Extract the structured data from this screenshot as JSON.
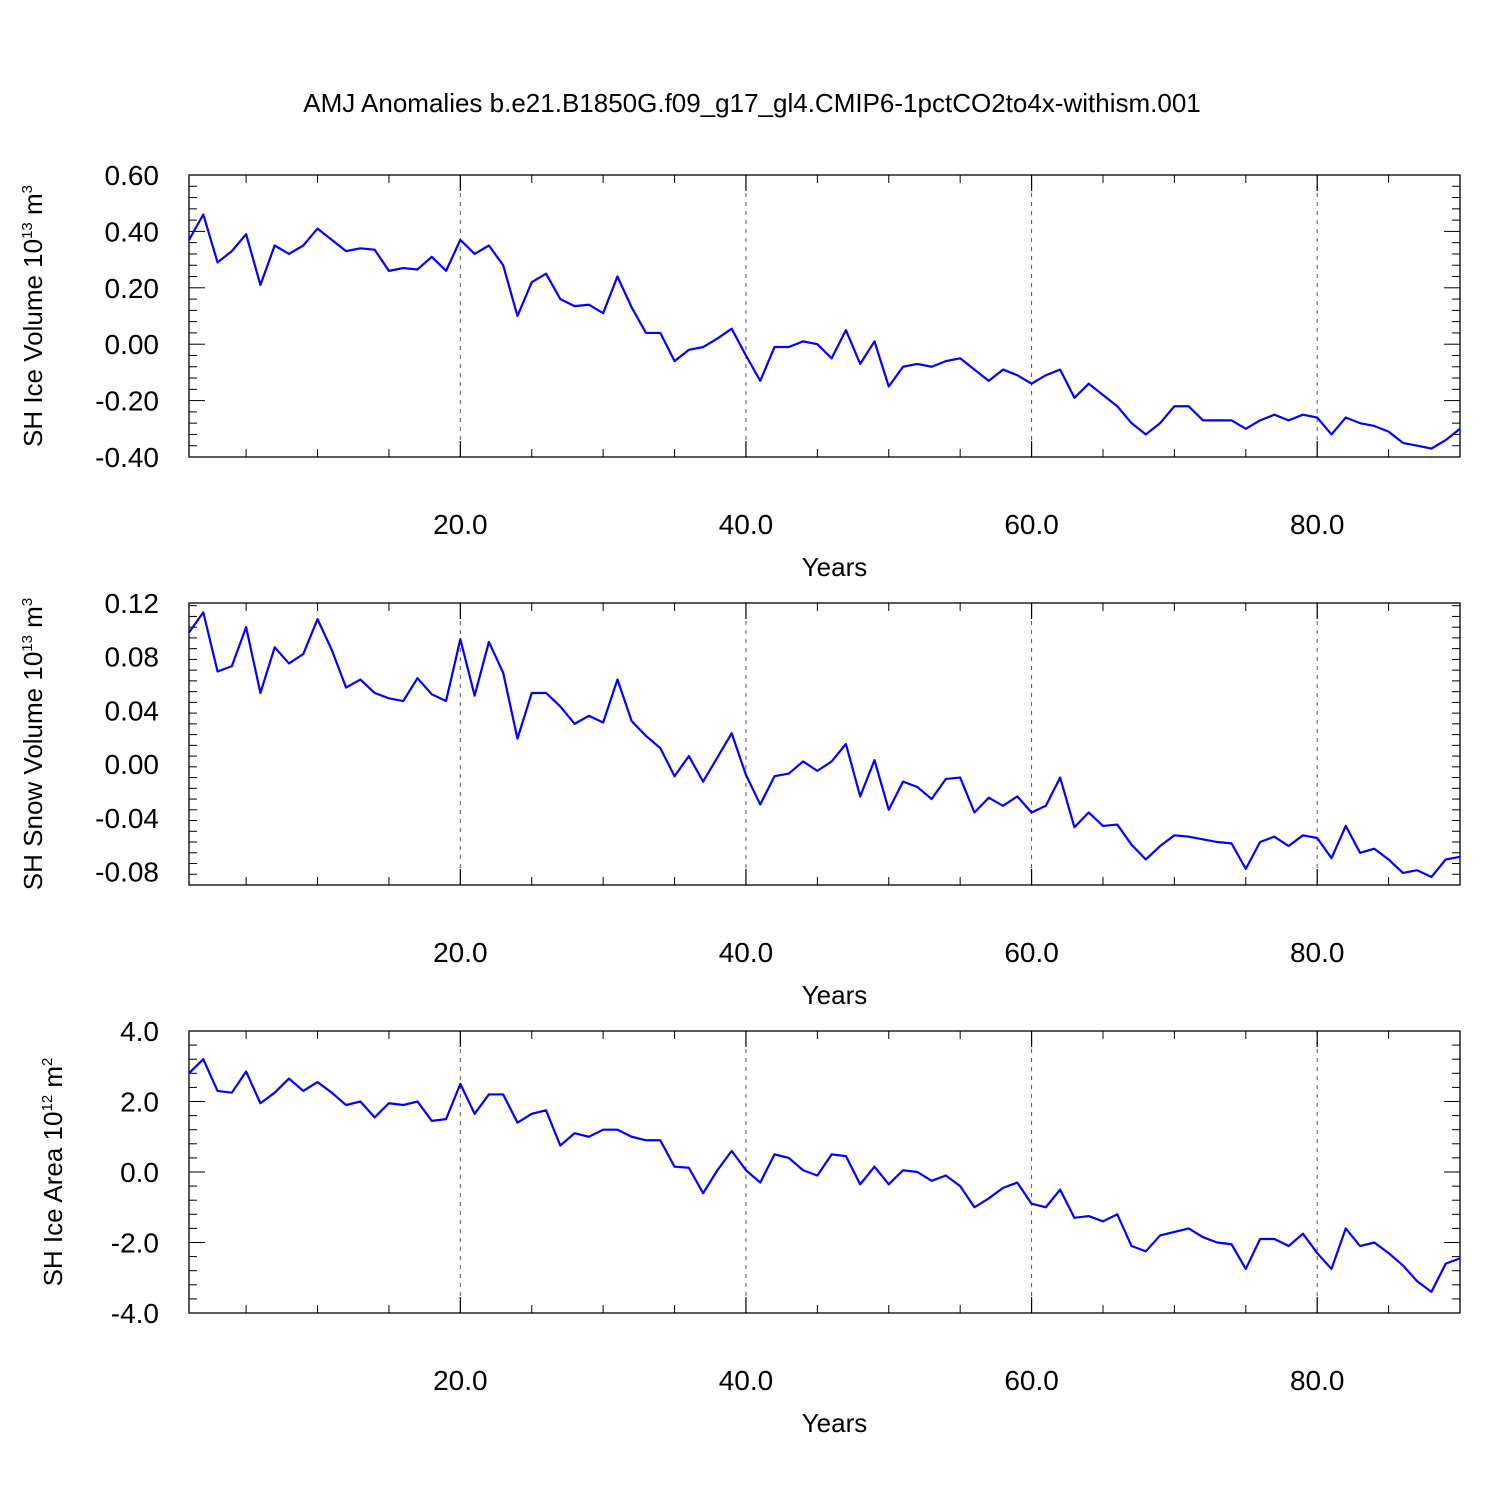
{
  "title": "AMJ Anomalies b.e21.B1850G.f09_g17_gl4.CMIP6-1pctCO2to4x-withism.001",
  "colors": {
    "line": "#0000ff",
    "axis": "#000000",
    "grid": "#555555"
  },
  "chart_data": [
    {
      "type": "line",
      "ylabel": {
        "prefix": "SH Ice Volume 10",
        "exp": "13",
        "unit": " m",
        "unit_exp": "3"
      },
      "xlabel": "Years",
      "xlim": [
        1,
        90
      ],
      "ylim": [
        -0.4,
        0.6
      ],
      "xticks": [
        20.0,
        40.0,
        60.0,
        80.0
      ],
      "xtick_labels": [
        "20.0",
        "40.0",
        "60.0",
        "80.0"
      ],
      "yticks": [
        -0.4,
        -0.2,
        0.0,
        0.2,
        0.4,
        0.6
      ],
      "ytick_labels": [
        "-0.40",
        "-0.20",
        "0.00",
        "0.20",
        "0.40",
        "0.60"
      ],
      "grid": "vertical-dashed",
      "x_start": 1,
      "values": [
        0.37,
        0.46,
        0.29,
        0.33,
        0.39,
        0.21,
        0.35,
        0.32,
        0.35,
        0.41,
        0.37,
        0.33,
        0.34,
        0.335,
        0.26,
        0.27,
        0.265,
        0.31,
        0.26,
        0.37,
        0.32,
        0.35,
        0.28,
        0.1,
        0.22,
        0.25,
        0.16,
        0.135,
        0.14,
        0.11,
        0.24,
        0.13,
        0.04,
        0.04,
        -0.06,
        -0.02,
        -0.01,
        0.02,
        0.055,
        -0.04,
        -0.13,
        -0.01,
        -0.01,
        0.01,
        0.0,
        -0.05,
        0.05,
        -0.07,
        0.01,
        -0.15,
        -0.08,
        -0.07,
        -0.08,
        -0.06,
        -0.05,
        -0.09,
        -0.13,
        -0.09,
        -0.11,
        -0.14,
        -0.11,
        -0.09,
        -0.19,
        -0.14,
        -0.18,
        -0.22,
        -0.28,
        -0.32,
        -0.28,
        -0.22,
        -0.22,
        -0.27,
        -0.27,
        -0.27,
        -0.3,
        -0.27,
        -0.25,
        -0.27,
        -0.25,
        -0.26,
        -0.32,
        -0.26,
        -0.28,
        -0.29,
        -0.31,
        -0.35,
        -0.36,
        -0.37,
        -0.34,
        -0.3
      ]
    },
    {
      "type": "line",
      "ylabel": {
        "prefix": "SH Snow Volume 10",
        "exp": "13",
        "unit": " m",
        "unit_exp": "3"
      },
      "xlabel": "Years",
      "xlim": [
        1,
        90
      ],
      "ylim": [
        -0.09,
        0.12
      ],
      "xticks": [
        20.0,
        40.0,
        60.0,
        80.0
      ],
      "xtick_labels": [
        "20.0",
        "40.0",
        "60.0",
        "80.0"
      ],
      "yticks": [
        -0.08,
        -0.04,
        0.0,
        0.04,
        0.08,
        0.12
      ],
      "ytick_labels": [
        "-0.08",
        "-0.04",
        "0.00",
        "0.04",
        "0.08",
        "0.12"
      ],
      "grid": "vertical-dashed",
      "x_start": 1,
      "values": [
        0.098,
        0.113,
        0.069,
        0.073,
        0.102,
        0.053,
        0.087,
        0.075,
        0.082,
        0.108,
        0.085,
        0.057,
        0.063,
        0.053,
        0.049,
        0.047,
        0.064,
        0.052,
        0.047,
        0.093,
        0.051,
        0.091,
        0.068,
        0.019,
        0.053,
        0.053,
        0.043,
        0.03,
        0.036,
        0.031,
        0.063,
        0.032,
        0.021,
        0.012,
        -0.009,
        0.006,
        -0.013,
        0.005,
        0.023,
        -0.008,
        -0.03,
        -0.009,
        -0.007,
        0.002,
        -0.005,
        0.002,
        0.015,
        -0.024,
        0.003,
        -0.034,
        -0.013,
        -0.017,
        -0.026,
        -0.011,
        -0.01,
        -0.036,
        -0.025,
        -0.031,
        -0.024,
        -0.036,
        -0.031,
        -0.01,
        -0.047,
        -0.036,
        -0.046,
        -0.045,
        -0.06,
        -0.071,
        -0.061,
        -0.053,
        -0.054,
        -0.056,
        -0.058,
        -0.059,
        -0.078,
        -0.058,
        -0.054,
        -0.061,
        -0.053,
        -0.055,
        -0.07,
        -0.046,
        -0.066,
        -0.063,
        -0.071,
        -0.081,
        -0.079,
        -0.084,
        -0.071,
        -0.069
      ]
    },
    {
      "type": "line",
      "ylabel": {
        "prefix": "SH Ice Area 10",
        "exp": "12",
        "unit": " m",
        "unit_exp": "2"
      },
      "xlabel": "Years",
      "xlim": [
        1,
        90
      ],
      "ylim": [
        -4.0,
        4.0
      ],
      "xticks": [
        20.0,
        40.0,
        60.0,
        80.0
      ],
      "xtick_labels": [
        "20.0",
        "40.0",
        "60.0",
        "80.0"
      ],
      "yticks": [
        -4.0,
        -2.0,
        0.0,
        2.0,
        4.0
      ],
      "ytick_labels": [
        "-4.0",
        "-2.0",
        "0.0",
        "2.0",
        "4.0"
      ],
      "grid": "vertical-dashed",
      "x_start": 1,
      "values": [
        2.8,
        3.2,
        2.3,
        2.25,
        2.85,
        1.95,
        2.25,
        2.65,
        2.3,
        2.55,
        2.25,
        1.9,
        2.0,
        1.55,
        1.95,
        1.9,
        2.0,
        1.45,
        1.5,
        2.5,
        1.65,
        2.2,
        2.2,
        1.4,
        1.65,
        1.75,
        0.75,
        1.1,
        1.0,
        1.2,
        1.2,
        1.0,
        0.9,
        0.9,
        0.15,
        0.12,
        -0.6,
        0.05,
        0.6,
        0.05,
        -0.3,
        0.5,
        0.4,
        0.05,
        -0.1,
        0.5,
        0.45,
        -0.35,
        0.15,
        -0.35,
        0.05,
        0.0,
        -0.25,
        -0.1,
        -0.4,
        -1.0,
        -0.75,
        -0.45,
        -0.3,
        -0.9,
        -1.0,
        -0.5,
        -1.3,
        -1.25,
        -1.4,
        -1.2,
        -2.1,
        -2.25,
        -1.8,
        -1.7,
        -1.6,
        -1.85,
        -2.0,
        -2.05,
        -2.75,
        -1.9,
        -1.9,
        -2.1,
        -1.75,
        -2.3,
        -2.75,
        -1.6,
        -2.1,
        -2.0,
        -2.3,
        -2.65,
        -3.1,
        -3.4,
        -2.6,
        -2.45
      ]
    }
  ]
}
